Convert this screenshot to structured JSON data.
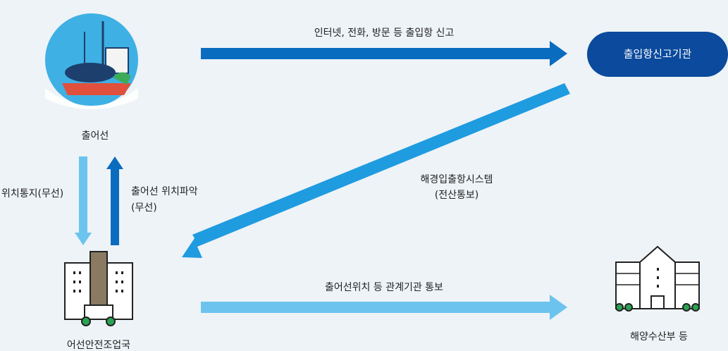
{
  "nodes": [
    {
      "label": "출어선"
    },
    {
      "label": "출입항신고기관"
    },
    {
      "label": "어선안전조업국"
    },
    {
      "label": "해양수산부 등"
    }
  ],
  "edges": [
    {
      "label": [
        "인터넷, 전화, 방문 등 출입항 신고"
      ]
    },
    {
      "label": [
        "해경입출항시스템",
        "(전산통보)"
      ]
    },
    {
      "label": [
        "위치통지(무선)"
      ]
    },
    {
      "label": [
        "출어선 위치파악",
        "(무선)"
      ]
    },
    {
      "label": [
        "출어선위치 등 관계기관 통보"
      ]
    }
  ]
}
